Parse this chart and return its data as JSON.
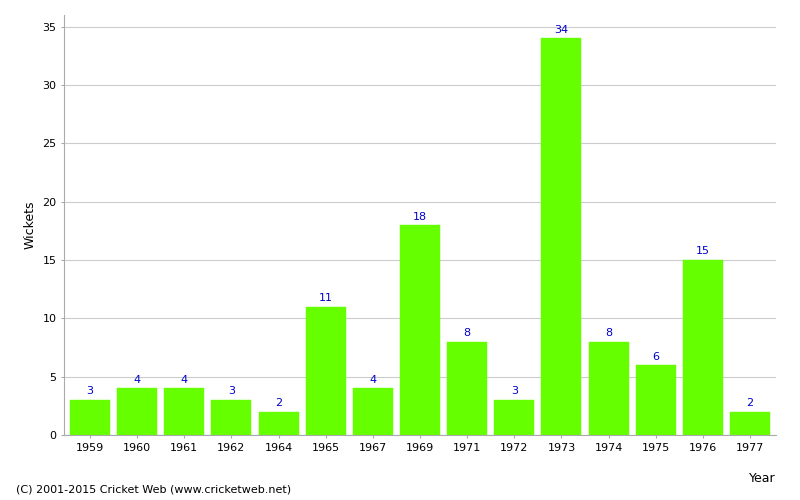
{
  "years": [
    "1959",
    "1960",
    "1961",
    "1962",
    "1964",
    "1965",
    "1967",
    "1969",
    "1971",
    "1972",
    "1973",
    "1974",
    "1975",
    "1976",
    "1977"
  ],
  "values": [
    3,
    4,
    4,
    3,
    2,
    11,
    4,
    18,
    8,
    3,
    34,
    8,
    6,
    15,
    2
  ],
  "bar_color": "#66ff00",
  "bar_edge_color": "#66ff00",
  "label_color": "#0000cc",
  "title": "",
  "xlabel": "Year",
  "ylabel": "Wickets",
  "ylim": [
    0,
    36
  ],
  "yticks": [
    0,
    5,
    10,
    15,
    20,
    25,
    30,
    35
  ],
  "grid_color": "#cccccc",
  "background_color": "#ffffff",
  "footnote": "(C) 2001-2015 Cricket Web (www.cricketweb.net)",
  "label_fontsize": 8,
  "axis_label_fontsize": 9,
  "tick_fontsize": 8,
  "footnote_fontsize": 8,
  "bar_width": 0.85
}
